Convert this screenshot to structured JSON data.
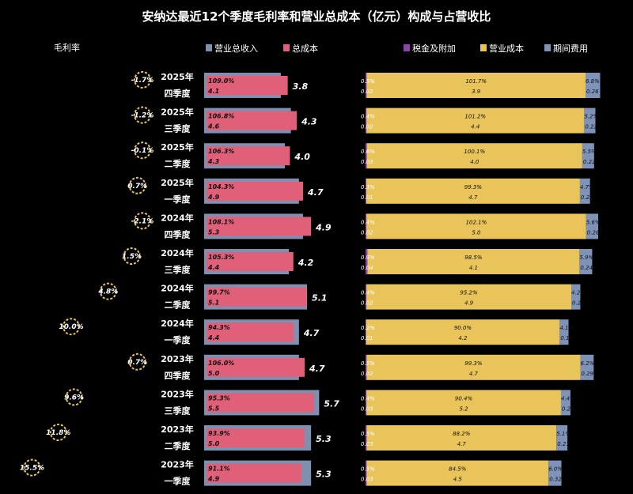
{
  "chart_data": {
    "type": "bar",
    "title": "安纳达最近12个季度毛利率和营业总成本（亿元）构成与占营收比",
    "left_header": "毛利率",
    "legend_left": [
      {
        "name": "营业总收入",
        "color": "#7f8fb0"
      },
      {
        "name": "总成本",
        "color": "#e0607a"
      }
    ],
    "legend_right": [
      {
        "name": "税金及附加",
        "color": "#8e44ad"
      },
      {
        "name": "营业成本",
        "color": "#e8c45a"
      },
      {
        "name": "期间费用",
        "color": "#7f93b8"
      }
    ],
    "quarters": [
      {
        "year": "2025年",
        "q": "四季度",
        "gross_margin": "-1.7%",
        "revenue": 3.8,
        "cost_pct": "109.0%",
        "cost": "4.1",
        "revenue_label": "3.8",
        "tax_pct": "0.5%",
        "tax": "0.02",
        "op_pct": "101.7%",
        "op": "3.9",
        "exp_pct": "6.8%",
        "exp": "0.26"
      },
      {
        "year": "2025年",
        "q": "三季度",
        "gross_margin": "-1.2%",
        "revenue": 4.3,
        "cost_pct": "106.8%",
        "cost": "4.6",
        "revenue_label": "4.3",
        "tax_pct": "0.4%",
        "tax": "0.02",
        "op_pct": "101.2%",
        "op": "4.4",
        "exp_pct": "5.2%",
        "exp": "0.22"
      },
      {
        "year": "2025年",
        "q": "二季度",
        "gross_margin": "-0.1%",
        "revenue": 4.0,
        "cost_pct": "106.3%",
        "cost": "4.3",
        "revenue_label": "4.0",
        "tax_pct": "0.6%",
        "tax": "0.03",
        "op_pct": "100.1%",
        "op": "4.0",
        "exp_pct": "5.5%",
        "exp": "0.22"
      },
      {
        "year": "2025年",
        "q": "一季度",
        "gross_margin": "0.7%",
        "revenue": 4.7,
        "cost_pct": "104.3%",
        "cost": "4.9",
        "revenue_label": "4.7",
        "tax_pct": "0.3%",
        "tax": "0.01",
        "op_pct": "99.3%",
        "op": "4.7",
        "exp_pct": "4.7%",
        "exp": "0.22"
      },
      {
        "year": "2024年",
        "q": "四季度",
        "gross_margin": "-2.1%",
        "revenue": 4.9,
        "cost_pct": "108.1%",
        "cost": "5.3",
        "revenue_label": "4.9",
        "tax_pct": "0.4%",
        "tax": "0.02",
        "op_pct": "102.1%",
        "op": "5.0",
        "exp_pct": "5.6%",
        "exp": "0.28"
      },
      {
        "year": "2024年",
        "q": "三季度",
        "gross_margin": "1.5%",
        "revenue": 4.2,
        "cost_pct": "105.3%",
        "cost": "4.4",
        "revenue_label": "4.2",
        "tax_pct": "0.9%",
        "tax": "0.04",
        "op_pct": "98.5%",
        "op": "4.1",
        "exp_pct": "5.9%",
        "exp": "0.24"
      },
      {
        "year": "2024年",
        "q": "二季度",
        "gross_margin": "4.8%",
        "revenue": 5.1,
        "cost_pct": "99.7%",
        "cost": "5.1",
        "revenue_label": "5.1",
        "tax_pct": "0.4%",
        "tax": "0.02",
        "op_pct": "95.2%",
        "op": "4.9",
        "exp_pct": "4.2%",
        "exp": "0.21"
      },
      {
        "year": "2024年",
        "q": "一季度",
        "gross_margin": "10.0%",
        "revenue": 4.7,
        "cost_pct": "94.3%",
        "cost": "4.4",
        "revenue_label": "4.7",
        "tax_pct": "0.2%",
        "tax": "0.01",
        "op_pct": "90.0%",
        "op": "4.2",
        "exp_pct": "4.1%",
        "exp": "0.19"
      },
      {
        "year": "2023年",
        "q": "四季度",
        "gross_margin": "0.7%",
        "revenue": 4.7,
        "cost_pct": "106.0%",
        "cost": "5.0",
        "revenue_label": "4.7",
        "tax_pct": "0.5%",
        "tax": "0.02",
        "op_pct": "99.3%",
        "op": "4.7",
        "exp_pct": "6.2%",
        "exp": "0.29"
      },
      {
        "year": "2023年",
        "q": "三季度",
        "gross_margin": "9.6%",
        "revenue": 5.7,
        "cost_pct": "95.3%",
        "cost": "5.5",
        "revenue_label": "5.7",
        "tax_pct": "0.4%",
        "tax": "0.03",
        "op_pct": "90.4%",
        "op": "5.2",
        "exp_pct": "4.4%",
        "exp": "0.25"
      },
      {
        "year": "2023年",
        "q": "二季度",
        "gross_margin": "11.8%",
        "revenue": 5.3,
        "cost_pct": "93.9%",
        "cost": "5.0",
        "revenue_label": "5.3",
        "tax_pct": "0.5%",
        "tax": "0.03",
        "op_pct": "88.2%",
        "op": "4.7",
        "exp_pct": "5.1%",
        "exp": "0.27"
      },
      {
        "year": "2023年",
        "q": "一季度",
        "gross_margin": "15.5%",
        "revenue": 5.3,
        "cost_pct": "91.1%",
        "cost": "4.9",
        "revenue_label": "5.3",
        "tax_pct": "0.5%",
        "tax": "0.03",
        "op_pct": "84.5%",
        "op": "4.5",
        "exp_pct": "6.0%",
        "exp": "0.32"
      }
    ]
  }
}
